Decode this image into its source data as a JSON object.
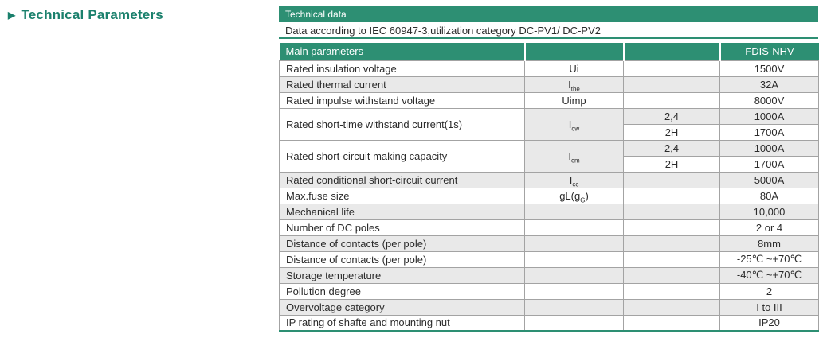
{
  "colors": {
    "green": "#2d8f73",
    "heading_green": "#1a806c",
    "row_gray": "#e9e9e9"
  },
  "section": {
    "arrow": "▶",
    "title": "Technical Parameters"
  },
  "header": {
    "bar_title": "Technical data",
    "subtitle": "Data according to IEC 60947-3,utilization category DC-PV1/ DC-PV2"
  },
  "table": {
    "head": {
      "col1": "Main parameters",
      "col4": "FDIS-NHV"
    },
    "rows": [
      {
        "param": "Rated insulation voltage",
        "sym_pre": "Ui",
        "value": "1500V"
      },
      {
        "param": "Rated thermal current",
        "sym_pre": "I",
        "sym_sub": "the",
        "value": "32A"
      },
      {
        "param": "Rated impulse withstand voltage",
        "sym_pre": "Uimp",
        "value": "8000V"
      },
      {
        "param": "Rated short-time withstand current(1s)",
        "sym_pre": "I",
        "sym_sub": "cw",
        "sub_a": "2,4",
        "value_a": "1000A",
        "sub_b": "2H",
        "value_b": "1700A"
      },
      {
        "param": "Rated short-circuit making capacity",
        "sym_pre": "I",
        "sym_sub": "cm",
        "sub_a": "2,4",
        "value_a": "1000A",
        "sub_b": "2H",
        "value_b": "1700A"
      },
      {
        "param": "Rated conditional short-circuit current",
        "sym_pre": "I",
        "sym_sub": "cc",
        "value": "5000A"
      },
      {
        "param": "Max.fuse size",
        "sym_pre": "gL(g",
        "sym_sub": "G",
        "sym_post": ")",
        "value": "80A"
      },
      {
        "param": "Mechanical life",
        "value": "10,000"
      },
      {
        "param": "Number of DC poles",
        "value": "2 or 4"
      },
      {
        "param": "Distance of contacts (per pole)",
        "value": "8mm"
      },
      {
        "param": "Distance of contacts (per pole)",
        "value": "-25℃ ~+70℃"
      },
      {
        "param": "Storage temperature",
        "value": "-40℃ ~+70℃"
      },
      {
        "param": "Pollution degree",
        "value": "2"
      },
      {
        "param": "Overvoltage category",
        "value": "I to III"
      },
      {
        "param": "IP rating of shafte and mounting nut",
        "value": "IP20"
      }
    ]
  }
}
